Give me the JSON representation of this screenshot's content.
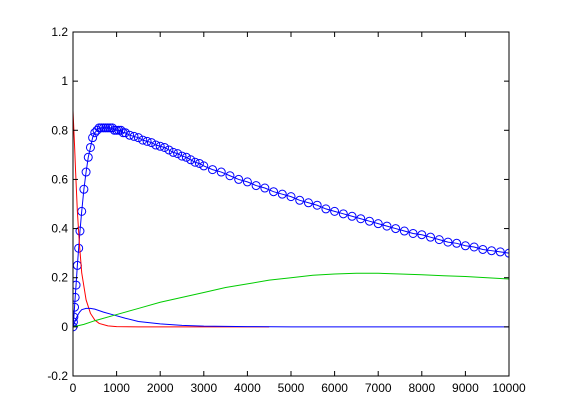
{
  "chart_data": {
    "type": "line",
    "title": "",
    "xlabel": "",
    "ylabel": "",
    "xlim": [
      0,
      10000
    ],
    "ylim": [
      -0.2,
      1.2
    ],
    "grid": false,
    "legend": "none",
    "x_ticks": [
      "0",
      "1000",
      "2000",
      "3000",
      "4000",
      "5000",
      "6000",
      "7000",
      "8000",
      "9000",
      "10000"
    ],
    "y_ticks": [
      "-0.2",
      "0",
      "0.2",
      "0.4",
      "0.6",
      "0.8",
      "1",
      "1.2"
    ],
    "series": [
      {
        "color": "#0000ff",
        "marker": "circle",
        "line": true,
        "points": [
          [
            0,
            0.0
          ],
          [
            10,
            0.02
          ],
          [
            20,
            0.04
          ],
          [
            35,
            0.08
          ],
          [
            50,
            0.12
          ],
          [
            70,
            0.17
          ],
          [
            100,
            0.25
          ],
          [
            130,
            0.32
          ],
          [
            160,
            0.39
          ],
          [
            200,
            0.47
          ],
          [
            250,
            0.56
          ],
          [
            300,
            0.63
          ],
          [
            350,
            0.69
          ],
          [
            400,
            0.73
          ],
          [
            450,
            0.77
          ],
          [
            500,
            0.79
          ],
          [
            550,
            0.8
          ],
          [
            600,
            0.81
          ],
          [
            650,
            0.81
          ],
          [
            700,
            0.81
          ],
          [
            750,
            0.81
          ],
          [
            800,
            0.81
          ],
          [
            850,
            0.81
          ],
          [
            900,
            0.81
          ],
          [
            950,
            0.8
          ],
          [
            1000,
            0.8
          ],
          [
            1050,
            0.8
          ],
          [
            1100,
            0.8
          ],
          [
            1150,
            0.79
          ],
          [
            1200,
            0.79
          ],
          [
            1300,
            0.78
          ],
          [
            1400,
            0.775
          ],
          [
            1500,
            0.77
          ],
          [
            1600,
            0.76
          ],
          [
            1700,
            0.755
          ],
          [
            1800,
            0.75
          ],
          [
            1900,
            0.74
          ],
          [
            2000,
            0.735
          ],
          [
            2100,
            0.73
          ],
          [
            2200,
            0.72
          ],
          [
            2300,
            0.71
          ],
          [
            2400,
            0.705
          ],
          [
            2500,
            0.695
          ],
          [
            2600,
            0.69
          ],
          [
            2700,
            0.68
          ],
          [
            2800,
            0.67
          ],
          [
            2900,
            0.665
          ],
          [
            3000,
            0.655
          ],
          [
            3200,
            0.64
          ],
          [
            3400,
            0.63
          ],
          [
            3600,
            0.615
          ],
          [
            3800,
            0.6
          ],
          [
            4000,
            0.59
          ],
          [
            4200,
            0.575
          ],
          [
            4400,
            0.565
          ],
          [
            4600,
            0.55
          ],
          [
            4800,
            0.54
          ],
          [
            5000,
            0.53
          ],
          [
            5200,
            0.515
          ],
          [
            5400,
            0.505
          ],
          [
            5600,
            0.495
          ],
          [
            5800,
            0.48
          ],
          [
            6000,
            0.47
          ],
          [
            6200,
            0.46
          ],
          [
            6400,
            0.45
          ],
          [
            6600,
            0.44
          ],
          [
            6800,
            0.43
          ],
          [
            7000,
            0.42
          ],
          [
            7200,
            0.41
          ],
          [
            7400,
            0.4
          ],
          [
            7600,
            0.39
          ],
          [
            7800,
            0.38
          ],
          [
            8000,
            0.375
          ],
          [
            8200,
            0.365
          ],
          [
            8400,
            0.355
          ],
          [
            8600,
            0.345
          ],
          [
            8800,
            0.34
          ],
          [
            9000,
            0.33
          ],
          [
            9200,
            0.325
          ],
          [
            9400,
            0.315
          ],
          [
            9600,
            0.31
          ],
          [
            9800,
            0.305
          ],
          [
            10000,
            0.3
          ]
        ]
      },
      {
        "color": "#ff0000",
        "marker": "none",
        "line": true,
        "points": [
          [
            0,
            0.88
          ],
          [
            20,
            0.8
          ],
          [
            40,
            0.72
          ],
          [
            60,
            0.63
          ],
          [
            80,
            0.55
          ],
          [
            100,
            0.47
          ],
          [
            150,
            0.33
          ],
          [
            200,
            0.22
          ],
          [
            300,
            0.11
          ],
          [
            400,
            0.055
          ],
          [
            500,
            0.028
          ],
          [
            600,
            0.014
          ],
          [
            800,
            0.004
          ],
          [
            1000,
            0.001
          ],
          [
            1500,
            0.0
          ],
          [
            2000,
            0.0
          ],
          [
            3000,
            0.0
          ],
          [
            4000,
            0.0
          ],
          [
            4500,
            0.0
          ]
        ]
      },
      {
        "color": "#0000ff",
        "marker": "none",
        "line": true,
        "points": [
          [
            0,
            0.0
          ],
          [
            50,
            0.025
          ],
          [
            100,
            0.045
          ],
          [
            150,
            0.06
          ],
          [
            200,
            0.07
          ],
          [
            300,
            0.075
          ],
          [
            400,
            0.075
          ],
          [
            500,
            0.072
          ],
          [
            700,
            0.06
          ],
          [
            900,
            0.05
          ],
          [
            1200,
            0.035
          ],
          [
            1500,
            0.022
          ],
          [
            2000,
            0.012
          ],
          [
            2500,
            0.006
          ],
          [
            3000,
            0.003
          ],
          [
            4000,
            0.001
          ],
          [
            5000,
            0.0
          ],
          [
            7000,
            0.0
          ],
          [
            10000,
            0.0
          ]
        ]
      },
      {
        "color": "#00cc00",
        "marker": "none",
        "line": true,
        "points": [
          [
            0,
            0.0
          ],
          [
            250,
            0.01
          ],
          [
            500,
            0.025
          ],
          [
            1000,
            0.05
          ],
          [
            1500,
            0.075
          ],
          [
            2000,
            0.1
          ],
          [
            2500,
            0.12
          ],
          [
            3000,
            0.14
          ],
          [
            3500,
            0.16
          ],
          [
            4000,
            0.175
          ],
          [
            4500,
            0.19
          ],
          [
            5000,
            0.2
          ],
          [
            5500,
            0.21
          ],
          [
            6000,
            0.215
          ],
          [
            6500,
            0.218
          ],
          [
            7000,
            0.218
          ],
          [
            7500,
            0.215
          ],
          [
            8000,
            0.212
          ],
          [
            8500,
            0.208
          ],
          [
            9000,
            0.205
          ],
          [
            9500,
            0.2
          ],
          [
            10000,
            0.195
          ]
        ]
      }
    ]
  }
}
